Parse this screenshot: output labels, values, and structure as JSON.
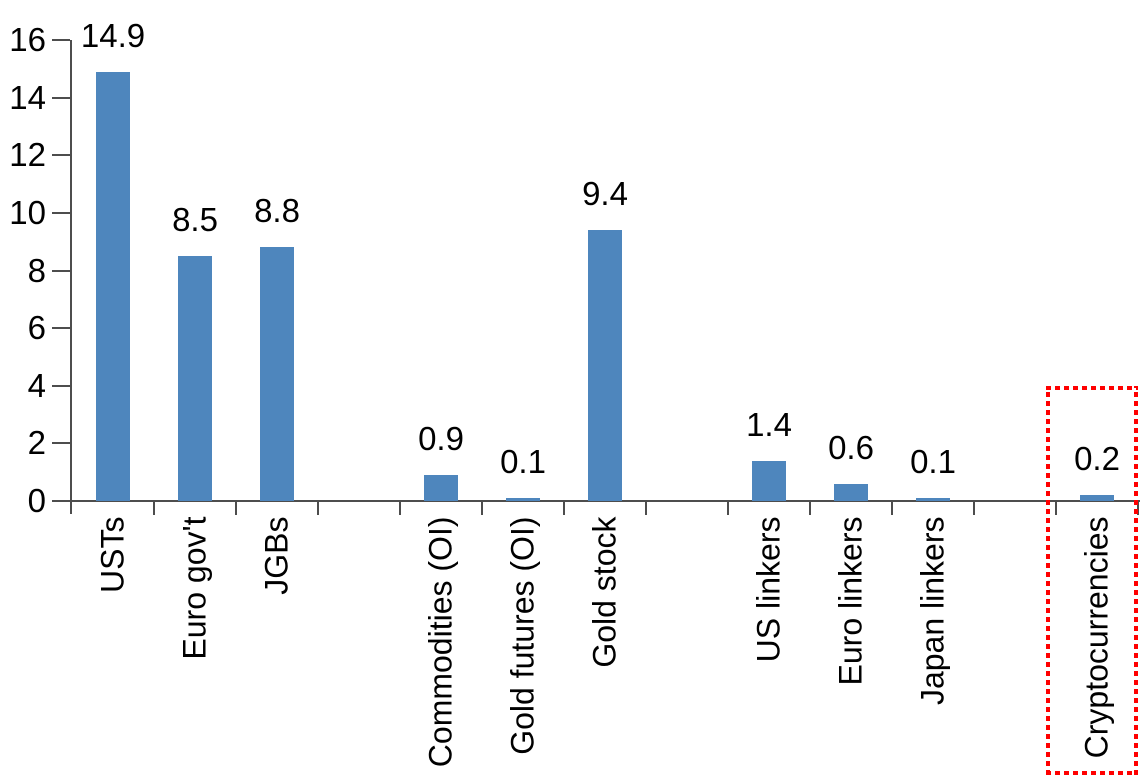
{
  "chart_data": {
    "type": "bar",
    "title": "",
    "xlabel": "",
    "ylabel": "",
    "categories": [
      "USTs",
      "Euro gov't",
      "JGBs",
      "Commodities (OI)",
      "Gold futures (OI)",
      "Gold stock",
      "US linkers",
      "Euro linkers",
      "Japan linkers",
      "Cryptocurrencies"
    ],
    "values": [
      14.9,
      8.5,
      8.8,
      0.9,
      0.1,
      9.4,
      1.4,
      0.6,
      0.1,
      0.2
    ],
    "value_labels": [
      "14.9",
      "8.5",
      "8.8",
      "0.9",
      "0.1",
      "9.4",
      "1.4",
      "0.6",
      "0.1",
      "0.2"
    ],
    "slots": [
      1,
      2,
      3,
      5,
      6,
      7,
      9,
      10,
      11,
      13
    ],
    "total_slots": 13,
    "y_ticks": [
      0,
      2,
      4,
      6,
      8,
      10,
      12,
      14,
      16
    ],
    "ylim": [
      0,
      16
    ],
    "grid": false,
    "legend": false,
    "colors": {
      "bar": "#4e86bd",
      "axis": "#4d4d4d",
      "text": "#000000",
      "highlight": "#ff0000"
    },
    "highlight": {
      "category": "Cryptocurrencies",
      "slot": 13,
      "style": "red-dotted-box"
    }
  }
}
